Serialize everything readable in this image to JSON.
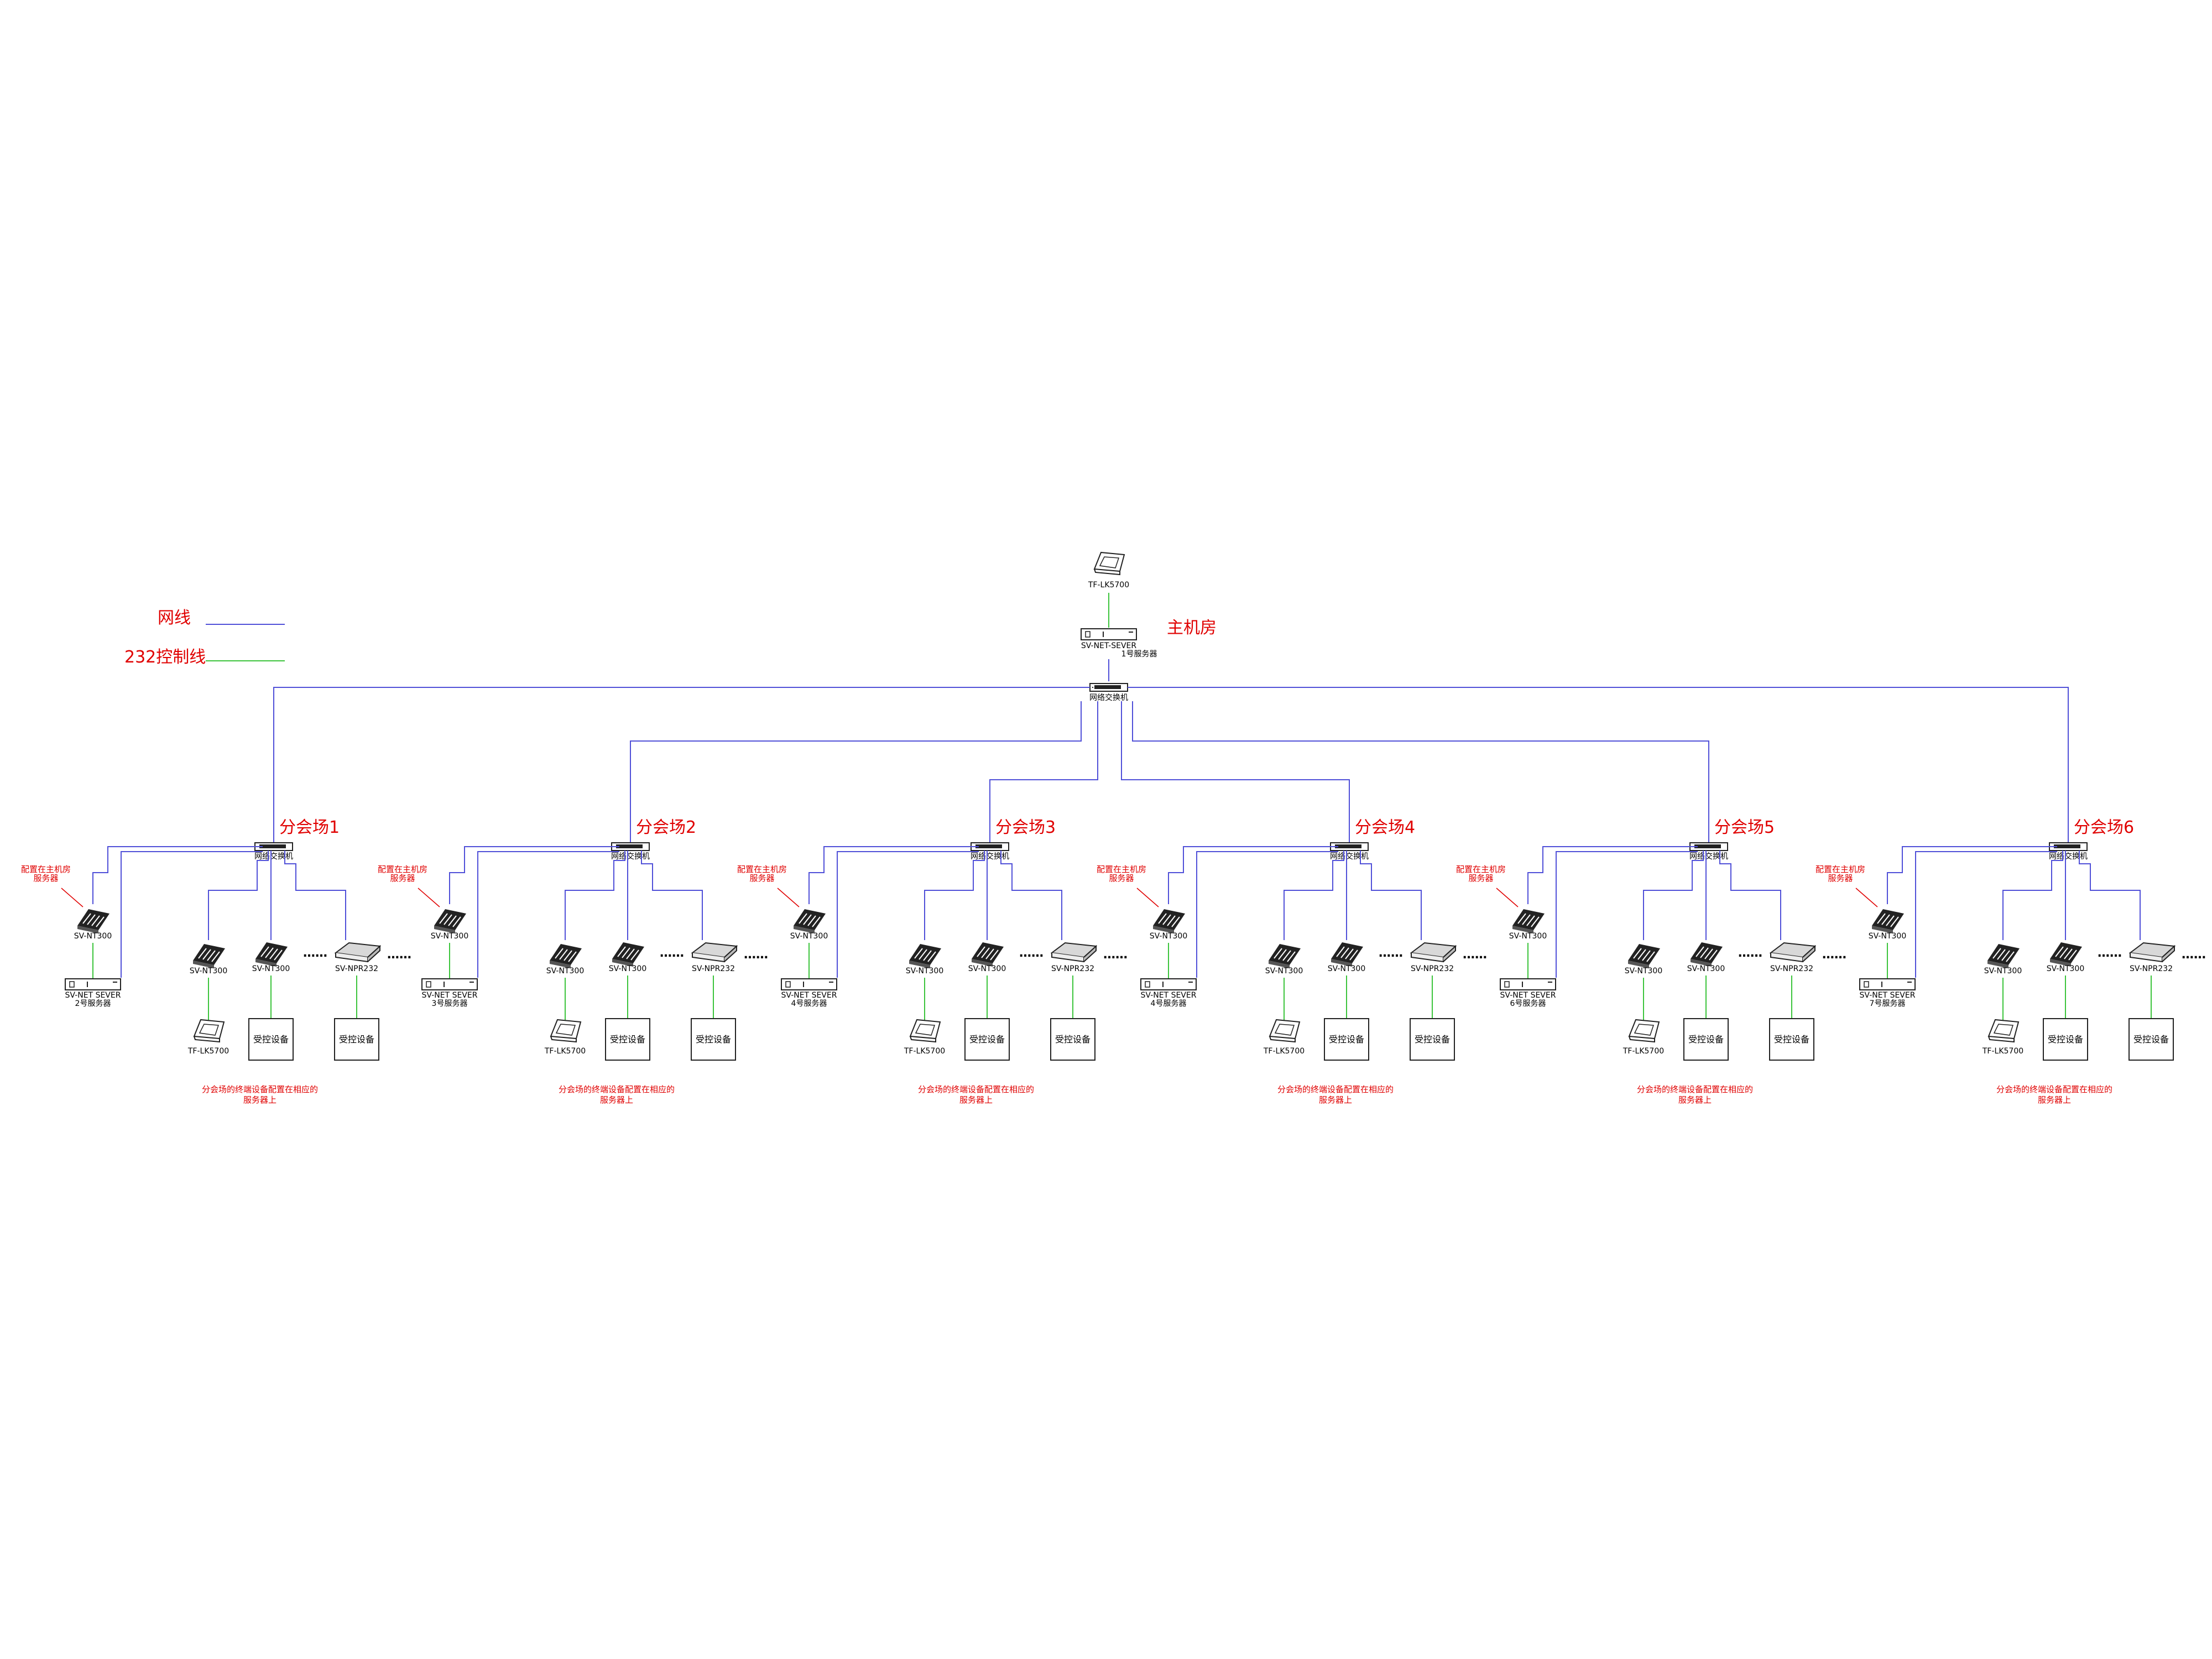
{
  "legend": {
    "network_line_label": "网线",
    "control_line_label": "232控制线",
    "network_line_color": "#5050d8",
    "control_line_color": "#3cc43c"
  },
  "main_room": {
    "title": "主机房",
    "panel_label": "TF-LK5700",
    "server_label": "SV-NET-SEVER",
    "server_number": "1号服务器",
    "switch_label": "网络交换机"
  },
  "branches": [
    {
      "title": "分会场1",
      "switch_label": "网络交换机",
      "note_label": "配置在主机房服务器",
      "decoder_left_label": "SV-NT300",
      "server_label": "SV-NET SEVER",
      "server_number": "2号服务器",
      "decoder_a_label": "SV-NT300",
      "decoder_b_label": "SV-NT300",
      "npr_label": "SV-NPR232",
      "panel_label": "TF-LK5700",
      "box1_label": "受控设备",
      "box2_label": "受控设备",
      "footer_note": "分会场的终端设备配置在相应的服务器上"
    },
    {
      "title": "分会场2",
      "switch_label": "网络交换机",
      "note_label": "配置在主机房服务器",
      "decoder_left_label": "SV-NT300",
      "server_label": "SV-NET SEVER",
      "server_number": "3号服务器",
      "decoder_a_label": "SV-NT300",
      "decoder_b_label": "SV-NT300",
      "npr_label": "SV-NPR232",
      "panel_label": "TF-LK5700",
      "box1_label": "受控设备",
      "box2_label": "受控设备",
      "footer_note": "分会场的终端设备配置在相应的服务器上"
    },
    {
      "title": "分会场3",
      "switch_label": "网络交换机",
      "note_label": "配置在主机房服务器",
      "decoder_left_label": "SV-NT300",
      "server_label": "SV-NET SEVER",
      "server_number": "4号服务器",
      "decoder_a_label": "SV-NT300",
      "decoder_b_label": "SV-NT300",
      "npr_label": "SV-NPR232",
      "panel_label": "TF-LK5700",
      "box1_label": "受控设备",
      "box2_label": "受控设备",
      "footer_note": "分会场的终端设备配置在相应的服务器上"
    },
    {
      "title": "分会场4",
      "switch_label": "网络交换机",
      "note_label": "配置在主机房服务器",
      "decoder_left_label": "SV-NT300",
      "server_label": "SV-NET SEVER",
      "server_number": "4号服务器",
      "decoder_a_label": "SV-NT300",
      "decoder_b_label": "SV-NT300",
      "npr_label": "SV-NPR232",
      "panel_label": "TF-LK5700",
      "box1_label": "受控设备",
      "box2_label": "受控设备",
      "footer_note": "分会场的终端设备配置在相应的服务器上"
    },
    {
      "title": "分会场5",
      "switch_label": "网络交换机",
      "note_label": "配置在主机房服务器",
      "decoder_left_label": "SV-NT300",
      "server_label": "SV-NET SEVER",
      "server_number": "6号服务器",
      "decoder_a_label": "SV-NT300",
      "decoder_b_label": "SV-NT300",
      "npr_label": "SV-NPR232",
      "panel_label": "TF-LK5700",
      "box1_label": "受控设备",
      "box2_label": "受控设备",
      "footer_note": "分会场的终端设备配置在相应的服务器上"
    },
    {
      "title": "分会场6",
      "switch_label": "网络交换机",
      "note_label": "配置在主机房服务器",
      "decoder_left_label": "SV-NT300",
      "server_label": "SV-NET SEVER",
      "server_number": "7号服务器",
      "decoder_a_label": "SV-NT300",
      "decoder_b_label": "SV-NT300",
      "npr_label": "SV-NPR232",
      "panel_label": "TF-LK5700",
      "box1_label": "受控设备",
      "box2_label": "受控设备",
      "footer_note": "分会场的终端设备配置在相应的服务器上"
    }
  ]
}
